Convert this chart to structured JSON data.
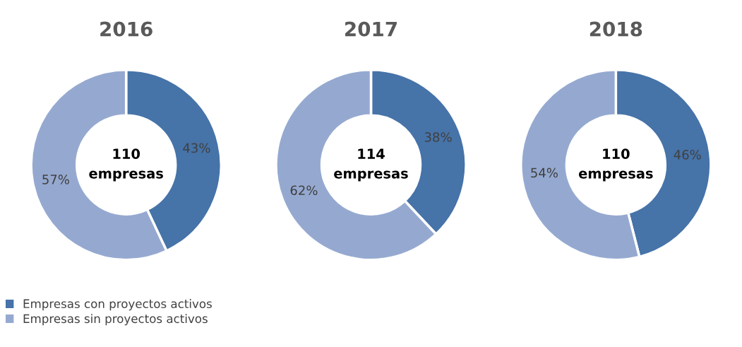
{
  "chart_data": [
    {
      "type": "donut",
      "title": "2016",
      "categories": [
        "Empresas con proyectos activos",
        "Empresas sin proyectos activos"
      ],
      "values": [
        43,
        57
      ],
      "value_labels": [
        "43%",
        "57%"
      ],
      "colors": [
        "#4673a8",
        "#95a9d0"
      ],
      "annotations": [
        "110\nempresas"
      ],
      "legend": "bottom left"
    },
    {
      "type": "donut",
      "title": "2017",
      "categories": [
        null,
        null
      ],
      "values": [
        38,
        62
      ],
      "value_labels": [
        "38%",
        "62%"
      ],
      "colors": [
        "#4673a8",
        "#95a9d0"
      ],
      "annotations": [
        "114\nempresas"
      ]
    },
    {
      "type": "donut",
      "title": "2018",
      "categories": [
        null,
        null
      ],
      "values": [
        46,
        54
      ],
      "value_labels": [
        "46%",
        "54%"
      ],
      "colors": [
        "#4673a8",
        "#95a9d0"
      ],
      "annotations": [
        "110\nempresas"
      ]
    }
  ]
}
